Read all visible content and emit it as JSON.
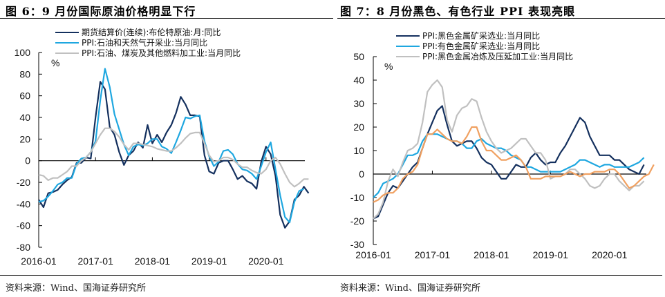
{
  "left": {
    "title": "图 6：9 月份国际原油价格明显下行",
    "source": "资料来源：Wind、国海证券研究所",
    "unit_label": "%"
  },
  "right": {
    "title": "图 7：8 月份黑色、有色行业 PPI 表现亮眼",
    "source": "资料来源：Wind、国海证券研究所",
    "unit_label": "%"
  },
  "chart_data": [
    {
      "type": "line",
      "title": "图 6：9 月份国际原油价格明显下行",
      "xlabel": "",
      "ylabel": "%",
      "x_start": "2016-01",
      "x_ticks": [
        "2016-01",
        "2017-01",
        "2018-01",
        "2019-01",
        "2020-01"
      ],
      "ylim": [
        -80,
        100
      ],
      "y_ticks": [
        -80,
        -60,
        -40,
        -20,
        0,
        20,
        40,
        60,
        80,
        100
      ],
      "legend": "top",
      "series": [
        {
          "name": "期货结算价(连续):布伦特原油:月:同比",
          "color": "#14305e",
          "values": [
            -36,
            -43,
            -30,
            -29,
            -27,
            -22,
            -18,
            -15,
            -2,
            -2,
            3,
            2,
            40,
            73,
            66,
            31,
            24,
            8,
            -4,
            5,
            9,
            17,
            12,
            33,
            16,
            24,
            17,
            26,
            33,
            44,
            59,
            52,
            42,
            42,
            41,
            5,
            -10,
            -12,
            -2,
            0,
            0,
            -8,
            -17,
            -14,
            -19,
            -21,
            -26,
            -1,
            13,
            6,
            -14,
            -50,
            -62,
            -56,
            -36,
            -32,
            -24,
            -30
          ]
        },
        {
          "name": "PPI:石油和天然气开采业:当月同比",
          "color": "#1ea7e0",
          "values": [
            -38,
            -37,
            -33,
            -28,
            -22,
            -20,
            -16,
            -16,
            -3,
            2,
            3,
            8,
            18,
            56,
            85,
            68,
            43,
            29,
            15,
            5,
            13,
            15,
            14,
            16,
            20,
            20,
            13,
            11,
            7,
            17,
            28,
            40,
            39,
            41,
            42,
            18,
            4,
            -5,
            -1,
            9,
            10,
            6,
            -3,
            -8,
            -9,
            -12,
            -17,
            -5,
            8,
            17,
            -8,
            -32,
            -52,
            -57,
            -38,
            -28,
            -26
          ]
        },
        {
          "name": "PPI:石油、煤炭及其他燃料加工业:当月同比",
          "color": "#c0c0c0",
          "values": [
            -13,
            -14,
            -18,
            -16,
            -16,
            -13,
            -10,
            -5,
            -5,
            0,
            3,
            8,
            16,
            24,
            30,
            30,
            27,
            22,
            15,
            10,
            16,
            16,
            15,
            14,
            13,
            11,
            10,
            9,
            9,
            12,
            16,
            21,
            25,
            26,
            26,
            16,
            5,
            -1,
            0,
            3,
            3,
            1,
            -3,
            -6,
            -6,
            -9,
            -11,
            -12,
            -8,
            0,
            3,
            -3,
            -12,
            -20,
            -24,
            -21,
            -17,
            -17
          ]
        }
      ]
    },
    {
      "type": "line",
      "title": "图 7：8 月份黑色、有色行业 PPI 表现亮眼",
      "xlabel": "",
      "ylabel": "%",
      "x_start": "2016-01",
      "x_ticks": [
        "2016-01",
        "2017-01",
        "2018-01",
        "2019-01",
        "2020-01"
      ],
      "ylim": [
        -30,
        50
      ],
      "y_ticks": [
        -30,
        -20,
        -10,
        0,
        10,
        20,
        30,
        40,
        50
      ],
      "legend": "top",
      "series": [
        {
          "name": "PPI:黑色金属矿采选业:当月同比",
          "color": "#14305e",
          "values": [
            -19,
            -18,
            -13,
            -8,
            -5,
            -6,
            -3,
            0,
            3,
            5,
            11,
            17,
            22,
            27,
            29,
            21,
            14,
            12,
            13,
            14,
            14,
            11,
            7,
            5,
            4,
            1,
            -2,
            -2,
            1,
            4,
            3,
            3,
            7,
            9,
            6,
            4,
            5,
            5,
            9,
            12,
            16,
            20,
            24,
            22,
            16,
            12,
            8,
            8,
            8,
            6,
            6,
            4,
            2,
            1,
            0,
            4
          ]
        },
        {
          "name": "PPI:有色金属矿采选业:当月同比",
          "color": "#1ea7e0",
          "values": [
            -10,
            -8,
            -4,
            -3,
            -2,
            0,
            4,
            8,
            8,
            9,
            14,
            17,
            17,
            17,
            16,
            15,
            14,
            14,
            13,
            11,
            11,
            14,
            15,
            13,
            12,
            11,
            11,
            10,
            8,
            7,
            6,
            3,
            3,
            2,
            1,
            1,
            1,
            1,
            1,
            2,
            3,
            4,
            6,
            6,
            5,
            4,
            3,
            4,
            4,
            3,
            3,
            3,
            3,
            4,
            5,
            7
          ]
        },
        {
          "name": "PPI:黑色金属冶炼及压延加工业:当月同比",
          "color": "#c0c0c0",
          "values": [
            -19,
            -17,
            -12,
            -3,
            2,
            -1,
            5,
            10,
            11,
            13,
            22,
            35,
            38,
            40,
            37,
            23,
            18,
            25,
            28,
            29,
            32,
            31,
            24,
            18,
            14,
            11,
            9,
            10,
            11,
            13,
            15,
            15,
            12,
            9,
            9,
            6,
            -2,
            -1,
            -1,
            0,
            2,
            2,
            0,
            -2,
            -5,
            -6,
            -5,
            -2,
            0,
            0,
            -3,
            -5,
            -7,
            -5,
            -5,
            -3
          ]
        },
        {
          "name": "PPI:有色金属冶炼及压延加工业:当月同比",
          "color": "#f0a060",
          "values": [
            -12,
            -11,
            -9,
            -8,
            -8,
            -6,
            -2,
            0,
            1,
            4,
            11,
            17,
            17,
            19,
            17,
            15,
            14,
            14,
            13,
            16,
            20,
            20,
            14,
            10,
            10,
            8,
            6,
            6,
            7,
            8,
            6,
            3,
            -2,
            -2,
            -2,
            -1,
            -1,
            -1,
            -1,
            0,
            1,
            0,
            -1,
            0,
            0,
            1,
            1,
            1,
            2,
            2,
            0,
            -3,
            -6,
            -5,
            -3,
            -1,
            0,
            4
          ]
        }
      ]
    }
  ]
}
